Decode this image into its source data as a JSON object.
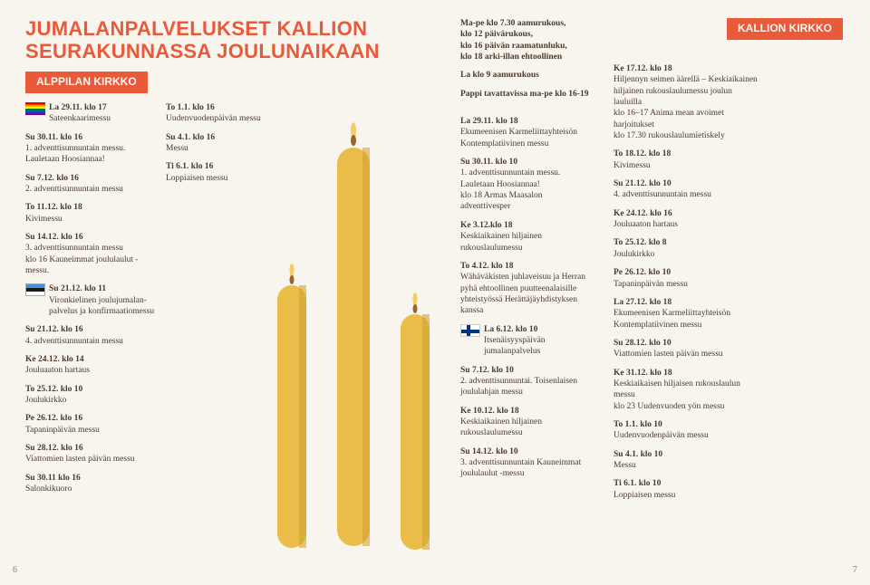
{
  "title_line1": "JUMALANPALVELUKSET KALLION",
  "title_line2": "SEURAKUNNASSA JOULUNAIKAAN",
  "tag_left": "ALPPILAN KIRKKO",
  "tag_right": "KALLION KIRKKO",
  "page_left": "6",
  "page_right": "7",
  "candle": {
    "body_color": "#e8b93a",
    "body_dark": "#cf9d25",
    "flame_outer": "#f5c95d",
    "flame_inner": "#8d5a1d"
  },
  "col1": [
    {
      "icon": "rainbow",
      "head": "La 29.11. klo 17",
      "body": "Sateenkaarimessu"
    },
    {
      "head": "Su 30.11. klo 16",
      "body": "1. adventtisunnuntain messu. Lauletaan Hoosiannaa!"
    },
    {
      "head": "Su 7.12. klo 16",
      "body": "2. adventtisunnuntain messu"
    },
    {
      "head": "To 11.12. klo 18",
      "body": "Kivimessu"
    },
    {
      "head": "Su 14.12. klo 16",
      "body": "3. adventtisunnuntain messu\nklo 16 Kauneimmat joululaulut -messu."
    },
    {
      "icon": "estonia",
      "head": "Su 21.12. klo 11",
      "body": "Vironkielinen joulujumalan­palvelus ja konfirmaatiomessu"
    },
    {
      "head": "Su 21.12. klo 16",
      "body": "4. adventtisunnuntain messu"
    },
    {
      "head": "Ke 24.12. klo 14",
      "body": "Jouluaaton hartaus"
    },
    {
      "head": "To 25.12. klo 10",
      "body": "Joulukirkko"
    },
    {
      "head": "Pe 26.12. klo 16",
      "body": "Tapaninpäivän messu"
    },
    {
      "head": "Su 28.12. klo 16",
      "body": "Viattomien lasten päivän messu"
    },
    {
      "head": "Su 30.11 klo 16",
      "body": "Salonkikuoro"
    }
  ],
  "col2": [
    {
      "head": "To 1.1. klo 16",
      "body": "Uudenvuodenpäivän messu"
    },
    {
      "head": "Su 4.1. klo 16",
      "body": "Messu"
    },
    {
      "head": "Ti 6.1. klo 16",
      "body": "Loppiaisen messu"
    }
  ],
  "col3a": [
    {
      "body": "Ma-pe klo 7.30 aamurukous,\nklo 12 päivärukous,\nklo 16 päivän raamatunluku,\nklo 18 arki-illan ehtoollinen"
    },
    {
      "body": "La klo 9 aamurukous"
    },
    {
      "body": "Pappi tavattavissa ma-pe klo 16-19"
    }
  ],
  "col3b": [
    {
      "head": "La 29.11. klo 18",
      "body": "Ekumeenisen Karmeliittayhteisön Kontemplatiivinen messu"
    },
    {
      "head": "Su 30.11. klo 10",
      "body": "1. adventtisunnuntain messu. Lauletaan Hoosiannaa!\nklo 18 Armas Maasalon adventtivesper"
    },
    {
      "head": "Ke 3.12.klo 18",
      "body": "Keskiaikainen hiljainen rukouslaulumessu"
    },
    {
      "head": "To 4.12. klo 18",
      "body": "Wähäväkisten juhlaveisuu ja Herran pyhä ehtoollinen puutteenalaisille yhteistyössä Herättäjäyhdistyksen kanssa"
    },
    {
      "icon": "finland",
      "head": "La 6.12. klo 10",
      "body": "Itsenäisyyspäivän jumalanpalvelus"
    },
    {
      "head": "Su 7.12. klo 10",
      "body": "2. adventtisunnuntai. Toisenlaisen joululahjan messu"
    },
    {
      "head": "Ke 10.12. klo 18",
      "body": "Keskiaikainen hiljainen rukouslaulumessu"
    },
    {
      "head": "Su 14.12. klo 10",
      "body": "3. adventtisunnuntain Kauneimmat joululaulut -messu"
    }
  ],
  "col4": [
    {
      "head": "Ke 17.12. klo 18",
      "body": "Hiljennyn seimen äärellä – Keskiaikainen hiljainen rukouslaulumessu joulun lauluilla\nklo 16–17 Anima mean avoimet harjoitukset\nklo 17.30 rukouslaulumietiskely"
    },
    {
      "head": "To 18.12. klo 18",
      "body": "Kivimessu"
    },
    {
      "head": "Su 21.12. klo 10",
      "body": "4. adventtisunnuntain messu"
    },
    {
      "head": "Ke 24.12. klo 16",
      "body": "Jouluaaton hartaus"
    },
    {
      "head": "To 25.12. klo 8",
      "body": "Joulukirkko"
    },
    {
      "head": "Pe 26.12. klo 10",
      "body": "Tapaninpäivän messu"
    },
    {
      "head": "La 27.12. klo 18",
      "body": "Ekumeenisen Karmeliittayhteisön Kontemplatiivinen messu"
    },
    {
      "head": "Su 28.12. klo 10",
      "body": "Viattomien lasten päivän messu"
    },
    {
      "head": "Ke 31.12. klo 18",
      "body": "Keskiaikaisen hiljaisen rukouslaulun messu\nklo 23 Uudenvuoden yön messu"
    },
    {
      "head": "To 1.1. klo 10",
      "body": "Uudenvuodenpäivän messu"
    },
    {
      "head": "Su 4.1. klo 10",
      "body": "Messu"
    },
    {
      "head": "Ti 6.1. klo 10",
      "body": "Loppiaisen messu"
    }
  ]
}
